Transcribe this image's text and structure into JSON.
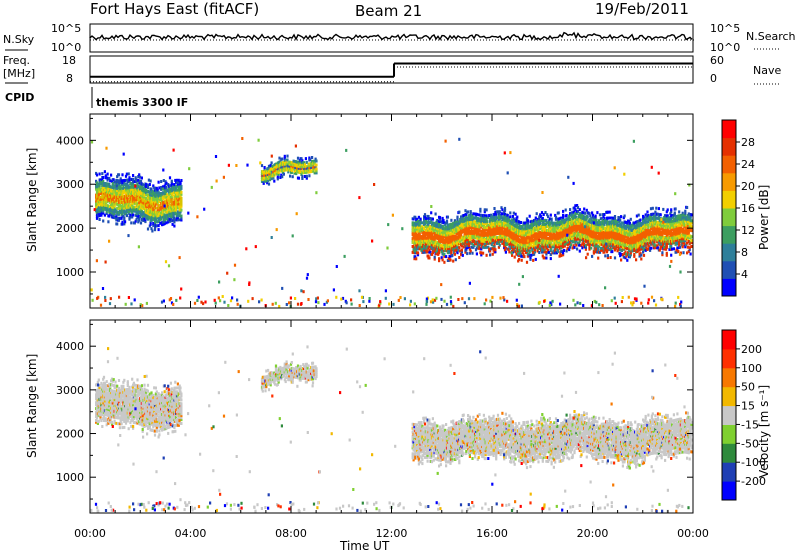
{
  "header": {
    "station": "Fort Hays East (fitACF)",
    "beam": "Beam 21",
    "date": "19/Feb/2011"
  },
  "strip": {
    "nsky_label": "N.Sky",
    "nsearch_label": "N.Search",
    "nsky_ticks": [
      "10^5",
      "10^0"
    ],
    "nsearch_ticks": [
      "10^5",
      "10^0"
    ],
    "freq_label_1": "Freq.",
    "freq_label_2": "[MHz]",
    "freq_ticks": [
      "18",
      "8"
    ],
    "nave_label": "Nave",
    "nave_ticks": [
      "60",
      "0"
    ],
    "cpid_label": "CPID",
    "cpid_text": "themis 3300 IF",
    "freq_values_mhz": [
      {
        "t_start": 0.0,
        "t_end": 12.1,
        "value": 10.2
      },
      {
        "t_start": 12.1,
        "t_end": 24.0,
        "value": 15.7
      }
    ],
    "nave_values": [
      {
        "t_start": 0.0,
        "t_end": 12.1,
        "value": 18
      },
      {
        "t_start": 12.1,
        "t_end": 24.0,
        "value": 55
      }
    ]
  },
  "chart_data": [
    {
      "type": "heatmap",
      "name": "power",
      "ylabel": "Slant Range [km]",
      "xlabel": "Time UT",
      "x_ticks": [
        "00:00",
        "04:00",
        "08:00",
        "12:00",
        "16:00",
        "20:00",
        "00:00"
      ],
      "y_ticks": [
        "1000",
        "2000",
        "3000",
        "4000"
      ],
      "xlim_hours": [
        0,
        24
      ],
      "ylim_km": [
        180,
        4600
      ],
      "colorbar_label": "Power [dB]",
      "colorbar_ticks": [
        "28",
        "24",
        "20",
        "16",
        "12",
        "8",
        "4"
      ],
      "colorbar_colors": [
        "#0000ff",
        "#1f4fb4",
        "#2e7f9a",
        "#3c9e60",
        "#7fcc3c",
        "#f2cf00",
        "#f79a00",
        "#f36000",
        "#e53000",
        "#ff0000"
      ],
      "regions": [
        {
          "t_start": 0.2,
          "t_end": 3.6,
          "r_center": 2650,
          "r_halfwidth": 450,
          "core": "#dac400"
        },
        {
          "t_start": 6.8,
          "t_end": 9.0,
          "r_center": 3350,
          "r_halfwidth": 180,
          "core": "#1f4fb4"
        },
        {
          "t_start": 12.8,
          "t_end": 23.9,
          "r_center": 1900,
          "r_halfwidth": 420,
          "core": "#f36000"
        }
      ]
    },
    {
      "type": "heatmap",
      "name": "velocity",
      "ylabel": "Slant Range [km]",
      "xlabel": "Time UT",
      "x_ticks": [
        "00:00",
        "04:00",
        "08:00",
        "12:00",
        "16:00",
        "20:00",
        "00:00"
      ],
      "y_ticks": [
        "1000",
        "2000",
        "3000",
        "4000"
      ],
      "xlim_hours": [
        0,
        24
      ],
      "ylim_km": [
        180,
        4600
      ],
      "colorbar_label": "Velocity [m s⁻¹]",
      "colorbar_ticks": [
        "200",
        "100",
        "50",
        "15",
        "-15",
        "-50",
        "-100",
        "-200"
      ],
      "colorbar_colors": [
        "#0000ff",
        "#1f3fb4",
        "#2e8a3c",
        "#7fd030",
        "#c8c8c8",
        "#f2b800",
        "#f77800",
        "#ff3000",
        "#ff0000"
      ],
      "regions": [
        {
          "t_start": 0.2,
          "t_end": 3.6,
          "r_center": 2650,
          "r_halfwidth": 450,
          "core": "#c8c8c8"
        },
        {
          "t_start": 6.8,
          "t_end": 9.0,
          "r_center": 3350,
          "r_halfwidth": 180,
          "core": "#c8c8c8"
        },
        {
          "t_start": 12.8,
          "t_end": 23.9,
          "r_center": 1900,
          "r_halfwidth": 420,
          "core": "#c8c8c8"
        }
      ]
    }
  ]
}
